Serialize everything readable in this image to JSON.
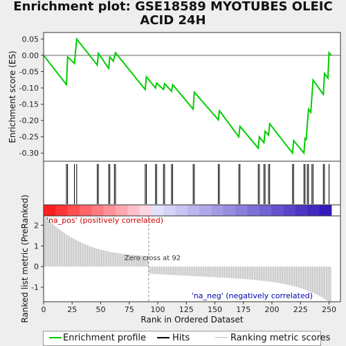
{
  "title_lines": [
    "Enrichment plot: GSE18589 MYOTUBES OLEIC",
    "ACID 24H"
  ],
  "chart_data": {
    "type": "line",
    "title": "Enrichment plot: GSE18589 MYOTUBES OLEIC ACID 24H",
    "xlabel": "Rank in Ordered Dataset",
    "ylabel_top": "Enrichment score (ES)",
    "ylabel_bottom": "Ranked list metric (PreRanked)",
    "xlim": [
      0,
      260
    ],
    "ylim_top": [
      -0.325,
      0.07
    ],
    "ylim_bottom": [
      -1.7,
      2.45
    ],
    "x_ticks": [
      "0",
      "25",
      "50",
      "75",
      "100",
      "125",
      "150",
      "175",
      "200",
      "225",
      "250"
    ],
    "x_tick_values": [
      0,
      25,
      50,
      75,
      100,
      125,
      150,
      175,
      200,
      225,
      250
    ],
    "y_ticks_top": [
      "0.05",
      "0.00",
      "-0.05",
      "-0.10",
      "-0.15",
      "-0.20",
      "-0.25",
      "-0.30"
    ],
    "y_tick_values_top": [
      0.05,
      0.0,
      -0.05,
      -0.1,
      -0.15,
      -0.2,
      -0.25,
      -0.3
    ],
    "y_ticks_bottom": [
      "2",
      "1",
      "0",
      "-1"
    ],
    "y_tick_values_bottom": [
      2,
      1,
      0,
      -1
    ],
    "enrichment_profile": {
      "name": "Enrichment profile",
      "color": "#00cc00",
      "points": [
        [
          0,
          0.0
        ],
        [
          20,
          -0.09
        ],
        [
          21,
          -0.005
        ],
        [
          27,
          -0.025
        ],
        [
          29,
          0.05
        ],
        [
          47,
          -0.03
        ],
        [
          48,
          0.006
        ],
        [
          57,
          -0.04
        ],
        [
          58,
          -0.005
        ],
        [
          61,
          -0.018
        ],
        [
          63,
          0.008
        ],
        [
          89,
          -0.105
        ],
        [
          90,
          -0.066
        ],
        [
          98,
          -0.1
        ],
        [
          99,
          -0.085
        ],
        [
          105,
          -0.105
        ],
        [
          106,
          -0.087
        ],
        [
          112,
          -0.11
        ],
        [
          113,
          -0.09
        ],
        [
          131,
          -0.165
        ],
        [
          132,
          -0.113
        ],
        [
          153,
          -0.198
        ],
        [
          154,
          -0.17
        ],
        [
          171,
          -0.25
        ],
        [
          172,
          -0.218
        ],
        [
          188,
          -0.285
        ],
        [
          189,
          -0.25
        ],
        [
          193,
          -0.268
        ],
        [
          194,
          -0.233
        ],
        [
          197,
          -0.245
        ],
        [
          198,
          -0.21
        ],
        [
          218,
          -0.3
        ],
        [
          219,
          -0.262
        ],
        [
          228,
          -0.3
        ],
        [
          229,
          -0.255
        ],
        [
          230,
          -0.258
        ],
        [
          232,
          -0.165
        ],
        [
          234,
          -0.175
        ],
        [
          236,
          -0.076
        ],
        [
          245,
          -0.12
        ],
        [
          246,
          -0.056
        ],
        [
          249,
          -0.07
        ],
        [
          250,
          0.008
        ],
        [
          252,
          0.0
        ]
      ]
    },
    "hits": [
      20,
      21,
      27,
      29,
      47,
      48,
      57,
      58,
      62,
      63,
      89,
      90,
      98,
      99,
      105,
      106,
      112,
      113,
      131,
      132,
      153,
      154,
      171,
      172,
      188,
      189,
      193,
      194,
      197,
      198,
      218,
      219,
      228,
      229,
      231,
      232,
      235,
      236,
      245,
      246,
      250
    ],
    "n_ranks": 252,
    "zero_cross_rank": 92,
    "annotations": {
      "pos_label": "'na_pos' (positively correlated)",
      "neg_label": "'na_neg' (negatively correlated)",
      "zero_cross_label": "Zero cross at 92"
    },
    "legend": [
      {
        "label": "Enrichment profile",
        "color": "#00cc00"
      },
      {
        "label": "Hits",
        "color": "#000000"
      },
      {
        "label": "Ranking metric scores",
        "color": "#cccccc"
      }
    ],
    "colors": {
      "pos_text": "#cc0000",
      "neg_text": "#0000aa",
      "metric_bars": "#aaaaaa",
      "zero_line": "#888888"
    }
  }
}
